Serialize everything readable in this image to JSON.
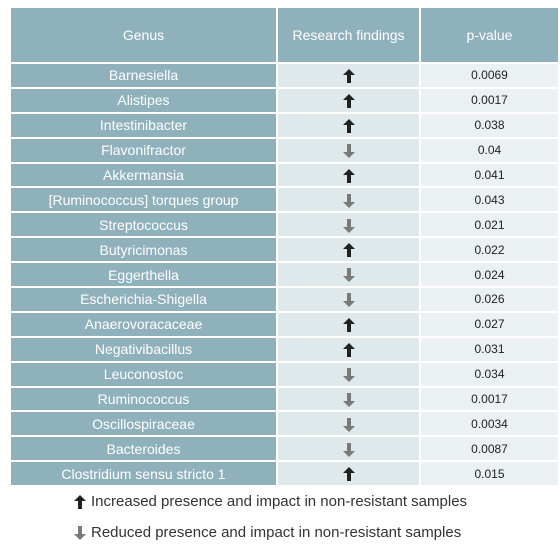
{
  "table": {
    "headers": {
      "genus": "Genus",
      "findings": "Research findings",
      "pvalue": "p-value"
    },
    "rows": [
      {
        "genus": "Barnesiella",
        "finding": "up",
        "p": "0.0069"
      },
      {
        "genus": "Alistipes",
        "finding": "up",
        "p": "0.0017"
      },
      {
        "genus": "Intestinibacter",
        "finding": "up",
        "p": "0.038"
      },
      {
        "genus": "Flavonifractor",
        "finding": "down",
        "p": "0.04"
      },
      {
        "genus": "Akkermansia",
        "finding": "up",
        "p": "0.041"
      },
      {
        "genus": "[Ruminococcus] torques group",
        "finding": "down",
        "p": "0.043"
      },
      {
        "genus": "Streptococcus",
        "finding": "down",
        "p": "0.021"
      },
      {
        "genus": "Butyricimonas",
        "finding": "up",
        "p": "0.022"
      },
      {
        "genus": "Eggerthella",
        "finding": "down",
        "p": "0.024"
      },
      {
        "genus": "Escherichia-Shigella",
        "finding": "down",
        "p": "0.026"
      },
      {
        "genus": "Anaerovoracaceae",
        "finding": "up",
        "p": "0.027"
      },
      {
        "genus": "Negativibacillus",
        "finding": "up",
        "p": "0.031"
      },
      {
        "genus": "Leuconostoc",
        "finding": "down",
        "p": "0.034"
      },
      {
        "genus": "Ruminococcus",
        "finding": "down",
        "p": "0.0017"
      },
      {
        "genus": "Oscillospiraceae",
        "finding": "down",
        "p": "0.0034"
      },
      {
        "genus": "Bacteroides",
        "finding": "down",
        "p": "0.0087"
      },
      {
        "genus": "Clostridium sensu stricto 1",
        "finding": "up",
        "p": "0.015"
      }
    ]
  },
  "legend": {
    "up_text": "Increased presence and impact in non-resistant samples",
    "down_text": "Reduced presence and impact in non-resistant samples"
  },
  "colors": {
    "header_bg": "#8fb1bb",
    "arrow_up": "#222222",
    "arrow_down": "#7a7a7a"
  }
}
